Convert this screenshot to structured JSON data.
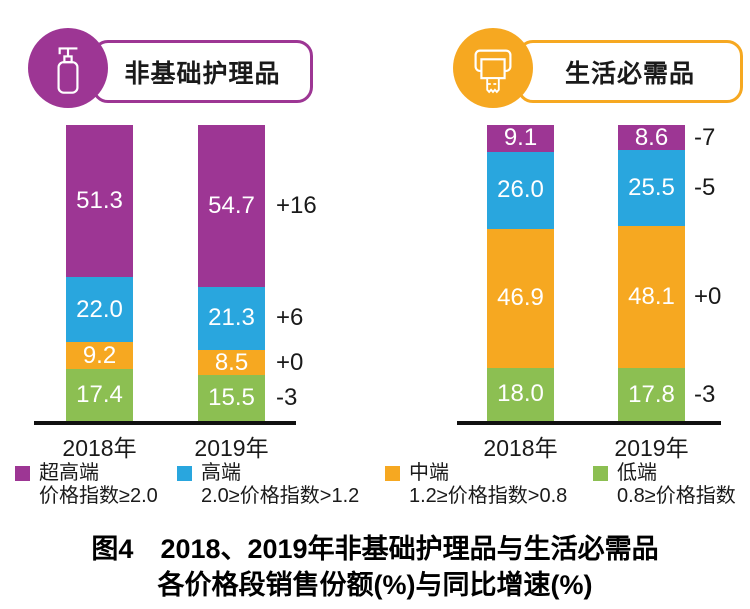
{
  "figure": {
    "caption_line1": "图4　2018、2019年非基础护理品与生活必需品",
    "caption_line2": "各价格段销售份额(%)与同比增速(%)"
  },
  "panels": [
    {
      "title": "非基础护理品",
      "icon": "lotion-pump-bottle",
      "accent": "#9D3694"
    },
    {
      "title": "生活必需品",
      "icon": "paper-towel-dispenser",
      "accent": "#F6A821"
    }
  ],
  "legend": {
    "items": [
      {
        "name": "超高端",
        "range": "价格指数≥2.0",
        "color": "#9D3694"
      },
      {
        "name": "高端",
        "range": "2.0≥价格指数>1.2",
        "color": "#29A6DE"
      },
      {
        "name": "中端",
        "range": "1.2≥价格指数>0.8",
        "color": "#F6A821"
      },
      {
        "name": "低端",
        "range": "0.8≥价格指数",
        "color": "#8CBF52"
      }
    ]
  },
  "chart_data": [
    {
      "type": "bar",
      "stacked": true,
      "title": "非基础护理品",
      "unit": "%",
      "categories": [
        "2018年",
        "2019年"
      ],
      "series": [
        {
          "name": "超高端",
          "color": "#9D3694",
          "values": [
            51.3,
            54.7
          ],
          "yoy": "+16"
        },
        {
          "name": "高端",
          "color": "#29A6DE",
          "values": [
            22.0,
            21.3
          ],
          "yoy": "+6"
        },
        {
          "name": "中端",
          "color": "#F6A821",
          "values": [
            9.2,
            8.5
          ],
          "yoy": "+0"
        },
        {
          "name": "低端",
          "color": "#8CBF52",
          "values": [
            17.4,
            15.5
          ],
          "yoy": "-3"
        }
      ],
      "ylim": [
        0,
        100
      ],
      "value_labels": "inside-segments-white",
      "yoy_labels_position": "right-of-2019-bar",
      "legend_position": "bottom"
    },
    {
      "type": "bar",
      "stacked": true,
      "title": "生活必需品",
      "unit": "%",
      "categories": [
        "2018年",
        "2019年"
      ],
      "series": [
        {
          "name": "超高端",
          "color": "#9D3694",
          "values": [
            9.1,
            8.6
          ],
          "yoy": "-7"
        },
        {
          "name": "高端",
          "color": "#29A6DE",
          "values": [
            26.0,
            25.5
          ],
          "yoy": "-5"
        },
        {
          "name": "中端",
          "color": "#F6A821",
          "values": [
            46.9,
            48.1
          ],
          "yoy": "+0"
        },
        {
          "name": "低端",
          "color": "#8CBF52",
          "values": [
            18.0,
            17.8
          ],
          "yoy": "-3"
        }
      ],
      "ylim": [
        0,
        100
      ],
      "value_labels": "inside-segments-white",
      "yoy_labels_position": "right-of-2019-bar",
      "legend_position": "bottom"
    }
  ]
}
